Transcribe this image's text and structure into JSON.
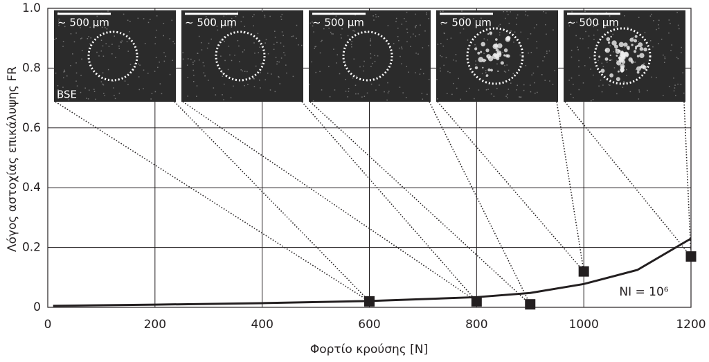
{
  "chart_data": {
    "type": "scatter",
    "x_label": "Φορτίο κρούσης [N]",
    "y_label": "Λόγος αστοχίας επικάλυψης FR",
    "xlim": [
      0,
      1200
    ],
    "ylim": [
      0,
      1
    ],
    "xticks": [
      0,
      200,
      400,
      600,
      800,
      1000,
      1200
    ],
    "yticks": [
      0,
      0.2,
      0.4,
      0.6,
      0.8,
      {
        "value": 1,
        "label": "1.0"
      }
    ],
    "grid": true,
    "color": "#231f20",
    "points": {
      "x": [
        600,
        800,
        900,
        1000,
        1200
      ],
      "values": [
        0.02,
        0.02,
        0.01,
        0.12,
        0.17
      ]
    },
    "curve": {
      "x": [
        10,
        200,
        400,
        600,
        800,
        900,
        1000,
        1100,
        1200
      ],
      "values": [
        0.005,
        0.009,
        0.014,
        0.021,
        0.034,
        0.048,
        0.078,
        0.125,
        0.23
      ]
    },
    "annotation": "NI = 10⁶",
    "insets": [
      {
        "scale_label": "~ 500 μm",
        "detector": "BSE"
      },
      {
        "scale_label": "~ 500 μm"
      },
      {
        "scale_label": "~ 500 μm"
      },
      {
        "scale_label": "~ 500 μm"
      },
      {
        "scale_label": "~ 500 μm"
      }
    ]
  }
}
